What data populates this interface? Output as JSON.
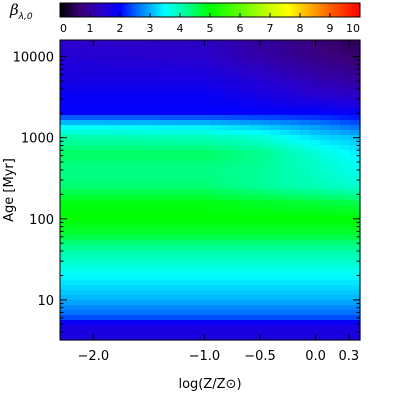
{
  "chart_data": {
    "type": "heatmap",
    "colorbar": {
      "label_symbol": "β",
      "label_subscript": "λ,0",
      "ticks": [
        0,
        1,
        2,
        3,
        4,
        5,
        6,
        7,
        8,
        9,
        10
      ],
      "range": [
        0,
        10
      ],
      "colormap_stops": [
        {
          "v": 0,
          "color": "#000000"
        },
        {
          "v": 0.7,
          "color": "#3a007a"
        },
        {
          "v": 1.4,
          "color": "#2a00cc"
        },
        {
          "v": 2.0,
          "color": "#0000ff"
        },
        {
          "v": 2.5,
          "color": "#0060ff"
        },
        {
          "v": 3.0,
          "color": "#00b0ff"
        },
        {
          "v": 3.5,
          "color": "#00ffff"
        },
        {
          "v": 4.2,
          "color": "#00ff9a"
        },
        {
          "v": 5.0,
          "color": "#00ff00"
        },
        {
          "v": 6.0,
          "color": "#60ff00"
        },
        {
          "v": 7.0,
          "color": "#ccff00"
        },
        {
          "v": 7.6,
          "color": "#ffff00"
        },
        {
          "v": 8.3,
          "color": "#ffb000"
        },
        {
          "v": 9.0,
          "color": "#ff6000"
        },
        {
          "v": 10,
          "color": "#ff0000"
        }
      ]
    },
    "x_axis": {
      "label": "log(Z/Z⊙)",
      "ticks": [
        "−2.0",
        "−1.0",
        "−0.5",
        "0.0",
        "0.3"
      ],
      "tick_values": [
        -2.0,
        -1.0,
        -0.5,
        0.0,
        0.3
      ],
      "range": [
        -2.3,
        0.4
      ]
    },
    "y_axis": {
      "label": "Age [Myr]",
      "scale": "log",
      "ticks": [
        "10",
        "100",
        "1000",
        "10000"
      ],
      "tick_values": [
        10,
        100,
        1000,
        10000
      ],
      "range": [
        3.2,
        16000
      ]
    },
    "log_age": [
      0.5,
      0.7,
      0.75,
      0.8,
      1.0,
      1.3,
      1.6,
      1.8,
      2.0,
      2.2,
      2.4,
      2.6,
      2.8,
      3.0,
      3.15,
      3.3,
      3.5,
      3.7,
      4.0,
      4.2
    ],
    "log_Z": [
      -2.3,
      -1.0,
      -0.5,
      0.0,
      0.4
    ],
    "values": [
      [
        1.6,
        1.6,
        1.6,
        1.6,
        1.6
      ],
      [
        1.7,
        1.7,
        1.7,
        1.7,
        1.7
      ],
      [
        2.2,
        2.2,
        2.2,
        2.2,
        2.2
      ],
      [
        2.5,
        2.5,
        2.5,
        2.5,
        2.5
      ],
      [
        3.0,
        3.0,
        3.0,
        3.0,
        3.0
      ],
      [
        3.5,
        3.5,
        3.5,
        3.5,
        3.5
      ],
      [
        4.1,
        4.1,
        4.1,
        4.1,
        4.1
      ],
      [
        4.7,
        4.7,
        4.7,
        4.7,
        4.7
      ],
      [
        5.0,
        5.0,
        5.0,
        5.0,
        5.0
      ],
      [
        4.9,
        4.9,
        4.8,
        4.7,
        4.6
      ],
      [
        4.4,
        4.4,
        4.2,
        4.0,
        3.8
      ],
      [
        4.3,
        4.3,
        4.2,
        3.9,
        3.6
      ],
      [
        4.5,
        4.5,
        4.3,
        3.8,
        3.4
      ],
      [
        4.1,
        4.0,
        3.8,
        3.3,
        3.1
      ],
      [
        3.4,
        3.3,
        3.1,
        2.8,
        2.5
      ],
      [
        2.0,
        2.0,
        2.0,
        2.0,
        1.9
      ],
      [
        1.9,
        1.9,
        1.7,
        1.5,
        1.4
      ],
      [
        1.7,
        1.7,
        1.5,
        1.2,
        1.0
      ],
      [
        1.5,
        1.4,
        1.1,
        0.8,
        0.6
      ],
      [
        1.4,
        1.3,
        1.0,
        0.7,
        0.5
      ]
    ]
  }
}
